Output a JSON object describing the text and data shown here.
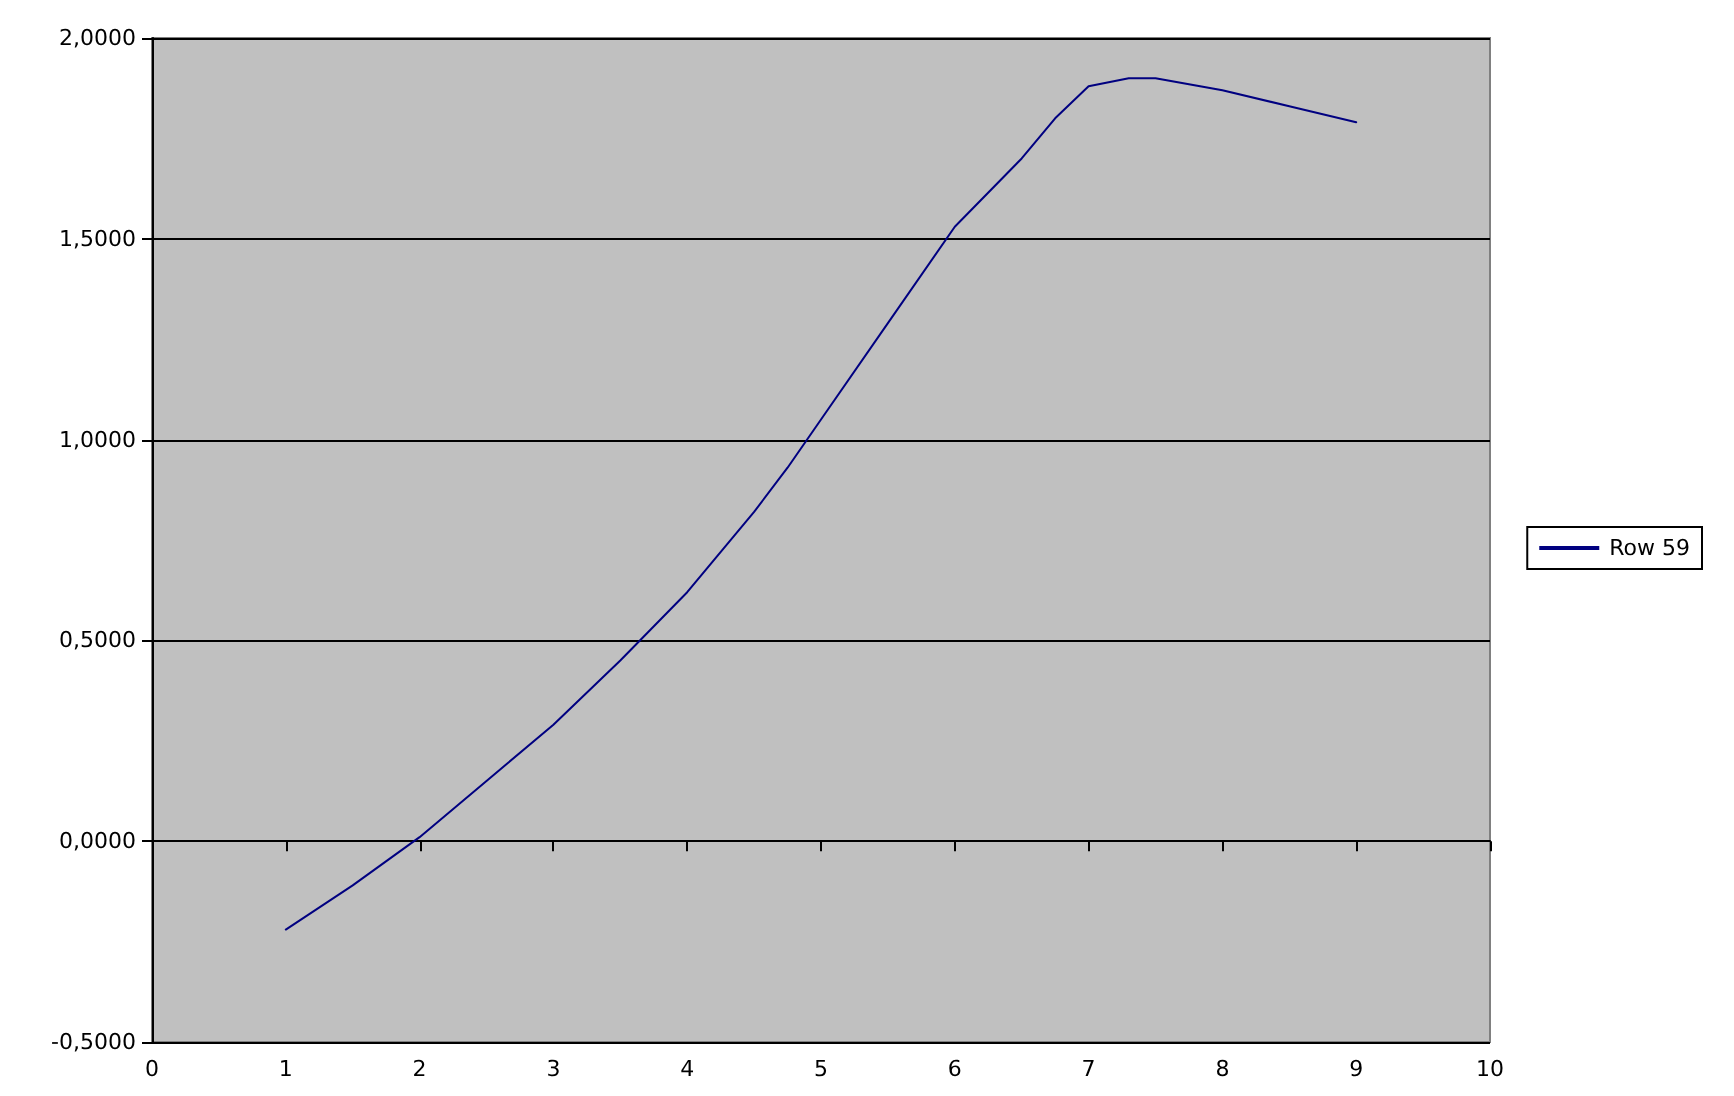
{
  "chart_data": {
    "type": "line",
    "x": [
      1,
      1.5,
      2,
      2.5,
      3,
      3.5,
      4,
      4.5,
      4.75,
      5,
      5.5,
      6,
      6.5,
      6.75,
      7,
      7.3,
      7.5,
      8,
      8.5,
      9
    ],
    "series": [
      {
        "name": "Row 59",
        "color": "#000080",
        "values": [
          -0.22,
          -0.11,
          0.01,
          0.15,
          0.29,
          0.45,
          0.62,
          0.82,
          0.93,
          1.05,
          1.29,
          1.53,
          1.7,
          1.8,
          1.88,
          1.9,
          1.9,
          1.87,
          1.83,
          1.79
        ]
      }
    ],
    "xlim": [
      0,
      10
    ],
    "xticks": [
      0,
      1,
      2,
      3,
      4,
      5,
      6,
      7,
      8,
      9,
      10
    ],
    "ylim": [
      -0.5,
      2
    ],
    "yticks": [
      {
        "value": -0.5,
        "label": "-0,5000"
      },
      {
        "value": 0,
        "label": "0,0000"
      },
      {
        "value": 0.5,
        "label": "0,5000"
      },
      {
        "value": 1,
        "label": "1,0000"
      },
      {
        "value": 1.5,
        "label": "1,5000"
      },
      {
        "value": 2,
        "label": "2,0000"
      }
    ],
    "grid": "y",
    "legend": "right",
    "marker": "none",
    "line_style": "solid"
  }
}
